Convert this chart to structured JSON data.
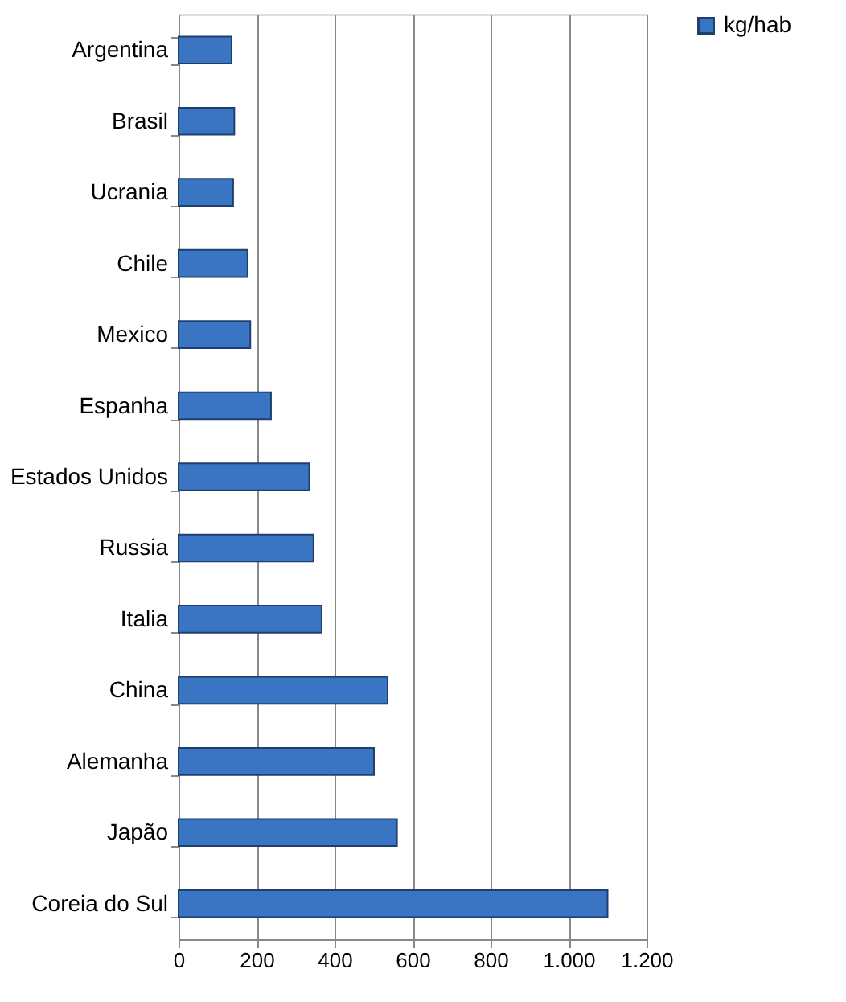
{
  "chart_data": {
    "type": "bar",
    "orientation": "horizontal",
    "categories": [
      "Argentina",
      "Brasil",
      "Ucrania",
      "Chile",
      "Mexico",
      "Espanha",
      "Estados Unidos",
      "Russia",
      "Italia",
      "China",
      "Alemanha",
      "Japão",
      "Coreia do Sul"
    ],
    "series": [
      {
        "name": "kg/hab",
        "color": "#3a75c4",
        "values": [
          136,
          143,
          140,
          177,
          184,
          237,
          335,
          346,
          367,
          536,
          501,
          560,
          1100
        ]
      }
    ],
    "xlim": [
      0,
      1200
    ],
    "xticks": [
      0,
      200,
      400,
      600,
      800,
      {
        "value": 1000,
        "label": "1.000"
      },
      {
        "value": 1200,
        "label": "1.200"
      }
    ],
    "grid": "x",
    "legend": "right"
  }
}
